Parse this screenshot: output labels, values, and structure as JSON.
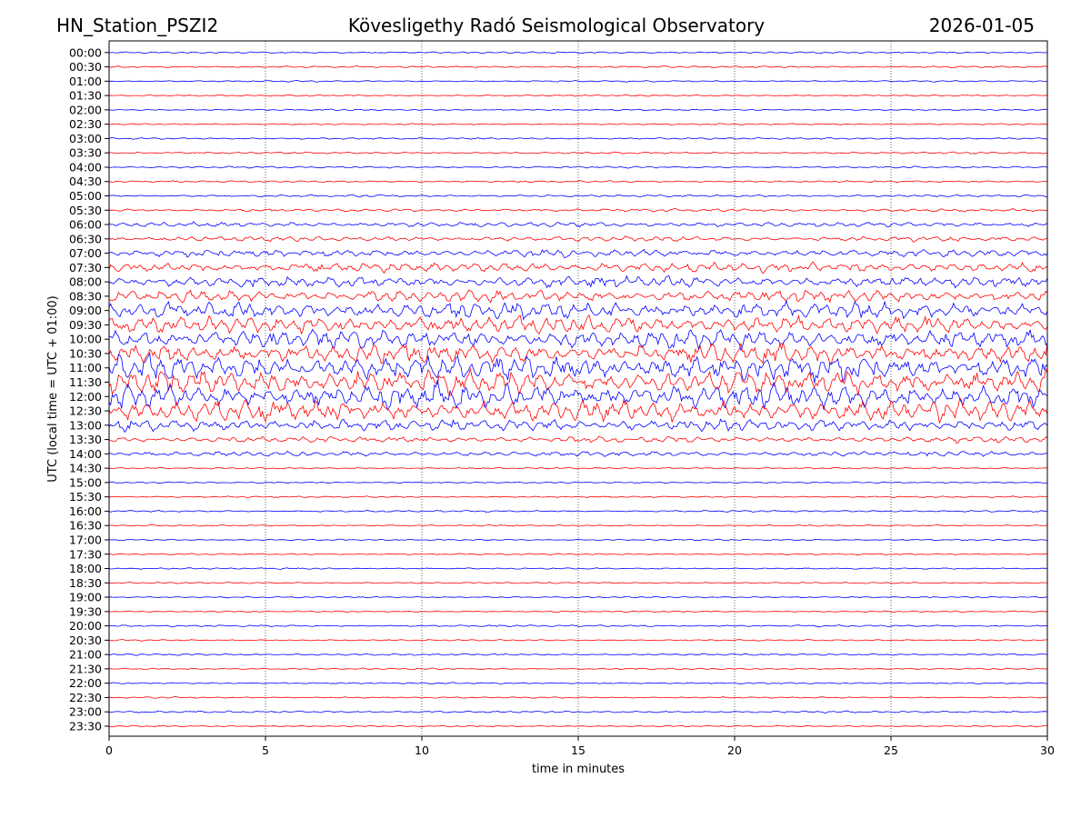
{
  "header": {
    "left_title": "HN_Station_PSZI2",
    "center_title": "Kövesligethy Radó Seismological Observatory",
    "right_title": "2026-01-05"
  },
  "chart_data": {
    "type": "line",
    "chart_kind": "helicorder",
    "xlabel": "time in minutes",
    "ylabel": "UTC (local time = UTC + 01:00)",
    "xlim": [
      0,
      30
    ],
    "x_ticks": [
      "0",
      "5",
      "10",
      "15",
      "20",
      "25",
      "30"
    ],
    "x_grid": "dotted vertical lines at every 5 minutes",
    "row_colors": [
      "#0000ff",
      "#ff0000"
    ],
    "rows": [
      {
        "label": "00:00",
        "amp": 1.5
      },
      {
        "label": "00:30",
        "amp": 1.5
      },
      {
        "label": "01:00",
        "amp": 1.2
      },
      {
        "label": "01:30",
        "amp": 1.2
      },
      {
        "label": "02:00",
        "amp": 1.2
      },
      {
        "label": "02:30",
        "amp": 1.2
      },
      {
        "label": "03:00",
        "amp": 1.5
      },
      {
        "label": "03:30",
        "amp": 1.5
      },
      {
        "label": "04:00",
        "amp": 1.5
      },
      {
        "label": "04:30",
        "amp": 1.5
      },
      {
        "label": "05:00",
        "amp": 1.8
      },
      {
        "label": "05:30",
        "amp": 2.5
      },
      {
        "label": "06:00",
        "amp": 4
      },
      {
        "label": "06:30",
        "amp": 4
      },
      {
        "label": "07:00",
        "amp": 6
      },
      {
        "label": "07:30",
        "amp": 8
      },
      {
        "label": "08:00",
        "amp": 9
      },
      {
        "label": "08:30",
        "amp": 10
      },
      {
        "label": "09:00",
        "amp": 14
      },
      {
        "label": "09:30",
        "amp": 14
      },
      {
        "label": "10:00",
        "amp": 15
      },
      {
        "label": "10:30",
        "amp": 16
      },
      {
        "label": "11:00",
        "amp": 20
      },
      {
        "label": "11:30",
        "amp": 20
      },
      {
        "label": "12:00",
        "amp": 20
      },
      {
        "label": "12:30",
        "amp": 18
      },
      {
        "label": "13:00",
        "amp": 10
      },
      {
        "label": "13:30",
        "amp": 5
      },
      {
        "label": "14:00",
        "amp": 4
      },
      {
        "label": "14:30",
        "amp": 1.2
      },
      {
        "label": "15:00",
        "amp": 1.2
      },
      {
        "label": "15:30",
        "amp": 1.2
      },
      {
        "label": "16:00",
        "amp": 1.5
      },
      {
        "label": "16:30",
        "amp": 1.2
      },
      {
        "label": "17:00",
        "amp": 1.2
      },
      {
        "label": "17:30",
        "amp": 1.2
      },
      {
        "label": "18:00",
        "amp": 1.2
      },
      {
        "label": "18:30",
        "amp": 1.2
      },
      {
        "label": "19:00",
        "amp": 1.2
      },
      {
        "label": "19:30",
        "amp": 1.2
      },
      {
        "label": "20:00",
        "amp": 1.5
      },
      {
        "label": "20:30",
        "amp": 1.2
      },
      {
        "label": "21:00",
        "amp": 1.5
      },
      {
        "label": "21:30",
        "amp": 1.2
      },
      {
        "label": "22:00",
        "amp": 1.2
      },
      {
        "label": "22:30",
        "amp": 1.2
      },
      {
        "label": "23:00",
        "amp": 1.5
      },
      {
        "label": "23:30",
        "amp": 1.2
      }
    ]
  }
}
